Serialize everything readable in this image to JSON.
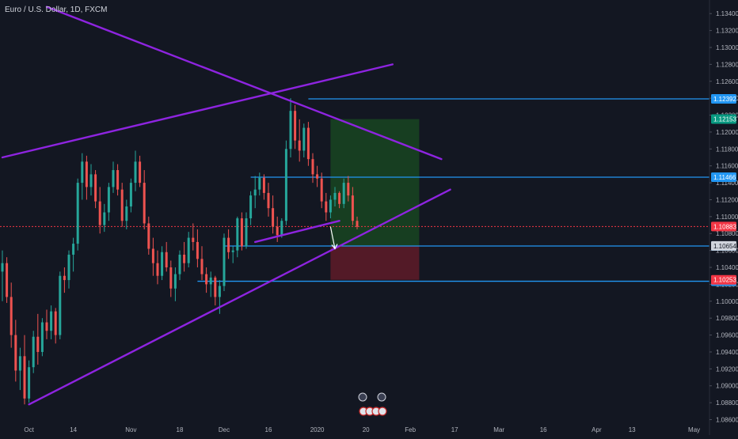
{
  "symbol_title": "Euro / U.S. Dollar, 1D, FXCM",
  "chart_data": {
    "type": "candlestick",
    "title": "Euro / U.S. Dollar, 1D, FXCM",
    "xlabel": "",
    "ylabel": "",
    "ylim": [
      1.0853,
      1.1343
    ],
    "grid": false,
    "colors": {
      "background": "#131722",
      "up": "#26a69a",
      "down": "#ef5350",
      "trend": "#8e24e0",
      "level": "#2196f3",
      "current": "#f23645",
      "target": "#1b5e20",
      "stop": "#7f1d2b",
      "axis_text": "#b2b5be"
    },
    "y_ticks": [
      "1.13400",
      "1.13200",
      "1.13000",
      "1.12800",
      "1.12600",
      "1.12400",
      "1.12200",
      "1.12000",
      "1.11800",
      "1.11600",
      "1.11400",
      "1.11200",
      "1.11000",
      "1.10800",
      "1.10600",
      "1.10400",
      "1.10200",
      "1.10000",
      "1.09800",
      "1.09600",
      "1.09400",
      "1.09200",
      "1.09000",
      "1.08800",
      "1.08600"
    ],
    "x_ticks": [
      {
        "label": "Oct",
        "bar": 6
      },
      {
        "label": "14",
        "bar": 16
      },
      {
        "label": "Nov",
        "bar": 29
      },
      {
        "label": "18",
        "bar": 40
      },
      {
        "label": "Dec",
        "bar": 50
      },
      {
        "label": "16",
        "bar": 60
      },
      {
        "label": "2020",
        "bar": 71
      },
      {
        "label": "20",
        "bar": 82
      },
      {
        "label": "Feb",
        "bar": 92
      },
      {
        "label": "17",
        "bar": 102
      },
      {
        "label": "Mar",
        "bar": 112
      },
      {
        "label": "16",
        "bar": 122
      },
      {
        "label": "Apr",
        "bar": 134
      },
      {
        "label": "13",
        "bar": 142
      },
      {
        "label": "May",
        "bar": 156
      }
    ],
    "candles": [
      {
        "o": 1.1035,
        "h": 1.106,
        "l": 1.1,
        "c": 1.1045
      },
      {
        "o": 1.1045,
        "h": 1.1052,
        "l": 1.0998,
        "c": 1.1005
      },
      {
        "o": 1.1005,
        "h": 1.1022,
        "l": 1.0945,
        "c": 1.096
      },
      {
        "o": 1.096,
        "h": 1.0978,
        "l": 1.0905,
        "c": 1.0918
      },
      {
        "o": 1.0918,
        "h": 1.0945,
        "l": 1.0895,
        "c": 1.0935
      },
      {
        "o": 1.0935,
        "h": 1.096,
        "l": 1.0878,
        "c": 1.0885
      },
      {
        "o": 1.0885,
        "h": 1.093,
        "l": 1.088,
        "c": 1.0922
      },
      {
        "o": 1.0922,
        "h": 1.0965,
        "l": 1.0915,
        "c": 1.0958
      },
      {
        "o": 1.0958,
        "h": 1.0985,
        "l": 1.0925,
        "c": 1.094
      },
      {
        "o": 1.094,
        "h": 1.098,
        "l": 1.0935,
        "c": 1.0975
      },
      {
        "o": 1.0975,
        "h": 1.099,
        "l": 1.0955,
        "c": 1.0965
      },
      {
        "o": 1.0965,
        "h": 1.0995,
        "l": 1.0955,
        "c": 1.0988
      },
      {
        "o": 1.0988,
        "h": 1.0992,
        "l": 1.095,
        "c": 1.096
      },
      {
        "o": 1.096,
        "h": 1.1035,
        "l": 1.0955,
        "c": 1.103
      },
      {
        "o": 1.103,
        "h": 1.104,
        "l": 1.101,
        "c": 1.1025
      },
      {
        "o": 1.1025,
        "h": 1.106,
        "l": 1.1015,
        "c": 1.1055
      },
      {
        "o": 1.1055,
        "h": 1.1075,
        "l": 1.1035,
        "c": 1.1068
      },
      {
        "o": 1.1068,
        "h": 1.1145,
        "l": 1.106,
        "c": 1.114
      },
      {
        "o": 1.114,
        "h": 1.1175,
        "l": 1.112,
        "c": 1.1165
      },
      {
        "o": 1.1165,
        "h": 1.1172,
        "l": 1.112,
        "c": 1.1135
      },
      {
        "o": 1.1135,
        "h": 1.1162,
        "l": 1.1125,
        "c": 1.115
      },
      {
        "o": 1.115,
        "h": 1.1155,
        "l": 1.111,
        "c": 1.1118
      },
      {
        "o": 1.1118,
        "h": 1.1135,
        "l": 1.108,
        "c": 1.109
      },
      {
        "o": 1.109,
        "h": 1.1115,
        "l": 1.1082,
        "c": 1.1105
      },
      {
        "o": 1.1105,
        "h": 1.114,
        "l": 1.1095,
        "c": 1.1135
      },
      {
        "o": 1.1135,
        "h": 1.1165,
        "l": 1.1128,
        "c": 1.1155
      },
      {
        "o": 1.1155,
        "h": 1.1162,
        "l": 1.1125,
        "c": 1.1132
      },
      {
        "o": 1.1132,
        "h": 1.114,
        "l": 1.1088,
        "c": 1.1095
      },
      {
        "o": 1.1095,
        "h": 1.112,
        "l": 1.1085,
        "c": 1.1112
      },
      {
        "o": 1.1112,
        "h": 1.1145,
        "l": 1.1105,
        "c": 1.114
      },
      {
        "o": 1.114,
        "h": 1.1178,
        "l": 1.113,
        "c": 1.1165
      },
      {
        "o": 1.1165,
        "h": 1.1172,
        "l": 1.1135,
        "c": 1.114
      },
      {
        "o": 1.114,
        "h": 1.1155,
        "l": 1.1085,
        "c": 1.1092
      },
      {
        "o": 1.1092,
        "h": 1.11,
        "l": 1.1055,
        "c": 1.1062
      },
      {
        "o": 1.1062,
        "h": 1.1075,
        "l": 1.103,
        "c": 1.1045
      },
      {
        "o": 1.1045,
        "h": 1.106,
        "l": 1.102,
        "c": 1.103
      },
      {
        "o": 1.103,
        "h": 1.1065,
        "l": 1.1025,
        "c": 1.1058
      },
      {
        "o": 1.1058,
        "h": 1.107,
        "l": 1.1035,
        "c": 1.104
      },
      {
        "o": 1.104,
        "h": 1.1048,
        "l": 1.1005,
        "c": 1.1015
      },
      {
        "o": 1.1015,
        "h": 1.104,
        "l": 1.1,
        "c": 1.1032
      },
      {
        "o": 1.1032,
        "h": 1.106,
        "l": 1.1025,
        "c": 1.1055
      },
      {
        "o": 1.1055,
        "h": 1.107,
        "l": 1.1035,
        "c": 1.1045
      },
      {
        "o": 1.1045,
        "h": 1.1082,
        "l": 1.104,
        "c": 1.1075
      },
      {
        "o": 1.1075,
        "h": 1.1092,
        "l": 1.106,
        "c": 1.107
      },
      {
        "o": 1.107,
        "h": 1.1085,
        "l": 1.104,
        "c": 1.105
      },
      {
        "o": 1.105,
        "h": 1.1065,
        "l": 1.1025,
        "c": 1.1032
      },
      {
        "o": 1.1032,
        "h": 1.104,
        "l": 1.101,
        "c": 1.102
      },
      {
        "o": 1.102,
        "h": 1.1035,
        "l": 1.1005,
        "c": 1.1028
      },
      {
        "o": 1.1028,
        "h": 1.103,
        "l": 1.0995,
        "c": 1.1005
      },
      {
        "o": 1.1005,
        "h": 1.1025,
        "l": 1.0985,
        "c": 1.1018
      },
      {
        "o": 1.1018,
        "h": 1.108,
        "l": 1.1012,
        "c": 1.1075
      },
      {
        "o": 1.1075,
        "h": 1.1085,
        "l": 1.105,
        "c": 1.1058
      },
      {
        "o": 1.1058,
        "h": 1.1065,
        "l": 1.1045,
        "c": 1.106
      },
      {
        "o": 1.106,
        "h": 1.11,
        "l": 1.1052,
        "c": 1.1098
      },
      {
        "o": 1.1098,
        "h": 1.1105,
        "l": 1.106,
        "c": 1.1065
      },
      {
        "o": 1.1065,
        "h": 1.1105,
        "l": 1.1062,
        "c": 1.1098
      },
      {
        "o": 1.1098,
        "h": 1.113,
        "l": 1.109,
        "c": 1.1125
      },
      {
        "o": 1.1125,
        "h": 1.1148,
        "l": 1.111,
        "c": 1.1132
      },
      {
        "o": 1.1132,
        "h": 1.1152,
        "l": 1.1125,
        "c": 1.1146
      },
      {
        "o": 1.1146,
        "h": 1.115,
        "l": 1.112,
        "c": 1.1128
      },
      {
        "o": 1.1128,
        "h": 1.114,
        "l": 1.11,
        "c": 1.111
      },
      {
        "o": 1.111,
        "h": 1.1125,
        "l": 1.108,
        "c": 1.1088
      },
      {
        "o": 1.1088,
        "h": 1.11,
        "l": 1.107,
        "c": 1.1078
      },
      {
        "o": 1.1078,
        "h": 1.1098,
        "l": 1.1075,
        "c": 1.1095
      },
      {
        "o": 1.1095,
        "h": 1.119,
        "l": 1.109,
        "c": 1.118
      },
      {
        "o": 1.118,
        "h": 1.124,
        "l": 1.117,
        "c": 1.1225
      },
      {
        "o": 1.1225,
        "h": 1.1232,
        "l": 1.118,
        "c": 1.119
      },
      {
        "o": 1.119,
        "h": 1.1215,
        "l": 1.1165,
        "c": 1.1178
      },
      {
        "o": 1.1178,
        "h": 1.121,
        "l": 1.117,
        "c": 1.1205
      },
      {
        "o": 1.1205,
        "h": 1.1212,
        "l": 1.116,
        "c": 1.1168
      },
      {
        "o": 1.1168,
        "h": 1.1175,
        "l": 1.114,
        "c": 1.115
      },
      {
        "o": 1.115,
        "h": 1.116,
        "l": 1.1135,
        "c": 1.1145
      },
      {
        "o": 1.1145,
        "h": 1.1152,
        "l": 1.111,
        "c": 1.1118
      },
      {
        "o": 1.1118,
        "h": 1.1128,
        "l": 1.1095,
        "c": 1.1105
      },
      {
        "o": 1.1105,
        "h": 1.1125,
        "l": 1.1098,
        "c": 1.112
      },
      {
        "o": 1.112,
        "h": 1.1135,
        "l": 1.1112,
        "c": 1.1128
      },
      {
        "o": 1.1128,
        "h": 1.113,
        "l": 1.111,
        "c": 1.1115
      },
      {
        "o": 1.1115,
        "h": 1.1145,
        "l": 1.111,
        "c": 1.114
      },
      {
        "o": 1.114,
        "h": 1.1148,
        "l": 1.1118,
        "c": 1.1125
      },
      {
        "o": 1.1125,
        "h": 1.1135,
        "l": 1.109,
        "c": 1.1095
      },
      {
        "o": 1.1095,
        "h": 1.11,
        "l": 1.1085,
        "c": 1.1088
      }
    ],
    "levels": [
      {
        "price": 1.12392,
        "label": "1.12392",
        "kind": "resistance"
      },
      {
        "price": 1.11466,
        "label": "1.11466",
        "kind": "resistance"
      },
      {
        "price": 1.10653,
        "label": "1.10653",
        "kind": "support"
      },
      {
        "price": 1.10236,
        "label": "1.10236",
        "kind": "support"
      }
    ],
    "price_tags": [
      {
        "price": 1.12153,
        "label": "1.12153",
        "kind": "target"
      },
      {
        "price": 1.10883,
        "label": "1.10883",
        "kind": "current"
      },
      {
        "price": 1.10654,
        "label": "1.10654",
        "kind": "entry"
      },
      {
        "price": 1.10253,
        "label": "1.10253",
        "kind": "stop"
      }
    ],
    "trendlines": [
      {
        "from": {
          "bar": 6,
          "price": 1.0878
        },
        "to": {
          "bar": 101,
          "price": 1.1132
        }
      },
      {
        "from": {
          "bar": 0,
          "price": 1.117
        },
        "to": {
          "bar": 88,
          "price": 1.128
        }
      },
      {
        "from": {
          "bar": 10,
          "price": 1.1348
        },
        "to": {
          "bar": 99,
          "price": 1.1168
        }
      },
      {
        "from": {
          "bar": 57,
          "price": 1.107
        },
        "to": {
          "bar": 76,
          "price": 1.1095
        }
      }
    ],
    "position": {
      "bar_start": 74,
      "bar_end": 94,
      "target": 1.12153,
      "entry": 1.10654,
      "stop": 1.10253
    },
    "arrow": {
      "from": {
        "bar": 74,
        "price": 1.1088
      },
      "to": {
        "bar": 75,
        "price": 1.1062
      }
    }
  }
}
